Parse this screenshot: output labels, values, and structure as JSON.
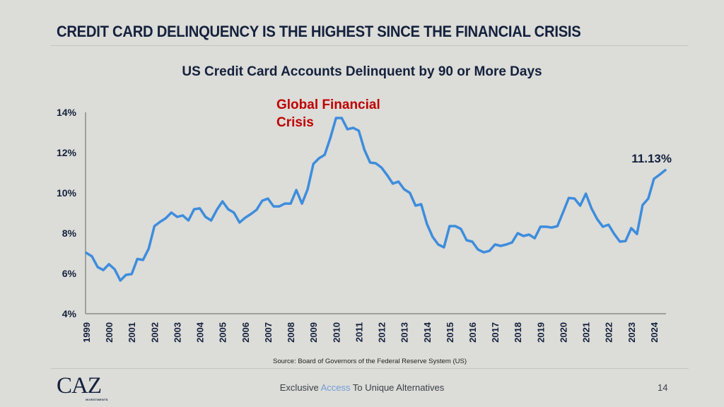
{
  "slide": {
    "headline": "CREDIT CARD DELINQUENCY IS THE HIGHEST SINCE THE FINANCIAL CRISIS",
    "source": "Source: Board of Governors of the Federal Reserve System (US)",
    "logo": "CAZ",
    "logo_sub": "INVESTMENTS",
    "tagline_pre": "Exclusive ",
    "tagline_accent": "Access",
    "tagline_post": " To Unique Alternatives",
    "page_number": "14",
    "colors": {
      "line": "#3d8ddd",
      "title": "#14213d",
      "annotation": "#c00000",
      "accent": "#6f9fd8",
      "background": "#dcdcd8"
    }
  },
  "chart_data": {
    "type": "line",
    "title": "US Credit Card Accounts Delinquent by 90 or More Days",
    "xlabel": "",
    "ylabel": "",
    "ylim": [
      4,
      14
    ],
    "yticks": [
      "4%",
      "6%",
      "8%",
      "10%",
      "12%",
      "14%"
    ],
    "ytick_values": [
      4,
      6,
      8,
      10,
      12,
      14
    ],
    "xtick_labels": [
      "1999",
      "2000",
      "2001",
      "2002",
      "2003",
      "2004",
      "2005",
      "2006",
      "2007",
      "2008",
      "2009",
      "2010",
      "2011",
      "2012",
      "2013",
      "2014",
      "2015",
      "2016",
      "2017",
      "2018",
      "2019",
      "2020",
      "2021",
      "2022",
      "2023",
      "2024"
    ],
    "frequency": "quarterly",
    "start": "1999 Q1",
    "grid": false,
    "legend": "none",
    "annotations": [
      {
        "text_lines": [
          "Global Financial",
          "Crisis"
        ],
        "near": "2010"
      },
      {
        "text": "11.13%",
        "near": "2024 Q3 (last point)"
      }
    ],
    "series": [
      {
        "name": "US Credit Card Accounts Delinquent 90+ Days (%)",
        "values": [
          7.02,
          6.85,
          6.32,
          6.17,
          6.46,
          6.21,
          5.65,
          5.93,
          5.97,
          6.72,
          6.67,
          7.23,
          8.35,
          8.56,
          8.74,
          9.02,
          8.81,
          8.88,
          8.63,
          9.19,
          9.23,
          8.81,
          8.63,
          9.16,
          9.58,
          9.19,
          9.02,
          8.53,
          8.77,
          8.95,
          9.16,
          9.61,
          9.72,
          9.33,
          9.33,
          9.47,
          9.47,
          10.14,
          9.47,
          10.18,
          11.44,
          11.72,
          11.89,
          12.74,
          13.72,
          13.72,
          13.16,
          13.23,
          13.09,
          12.14,
          11.51,
          11.47,
          11.26,
          10.88,
          10.46,
          10.56,
          10.18,
          10.0,
          9.37,
          9.44,
          8.46,
          7.82,
          7.44,
          7.3,
          8.35,
          8.35,
          8.21,
          7.65,
          7.58,
          7.19,
          7.05,
          7.12,
          7.44,
          7.37,
          7.44,
          7.54,
          8.0,
          7.86,
          7.93,
          7.75,
          8.32,
          8.32,
          8.28,
          8.35,
          9.05,
          9.75,
          9.72,
          9.37,
          9.96,
          9.23,
          8.7,
          8.32,
          8.42,
          7.96,
          7.58,
          7.61,
          8.25,
          7.96,
          9.4,
          9.72,
          10.7,
          10.91,
          11.13
        ]
      }
    ]
  }
}
